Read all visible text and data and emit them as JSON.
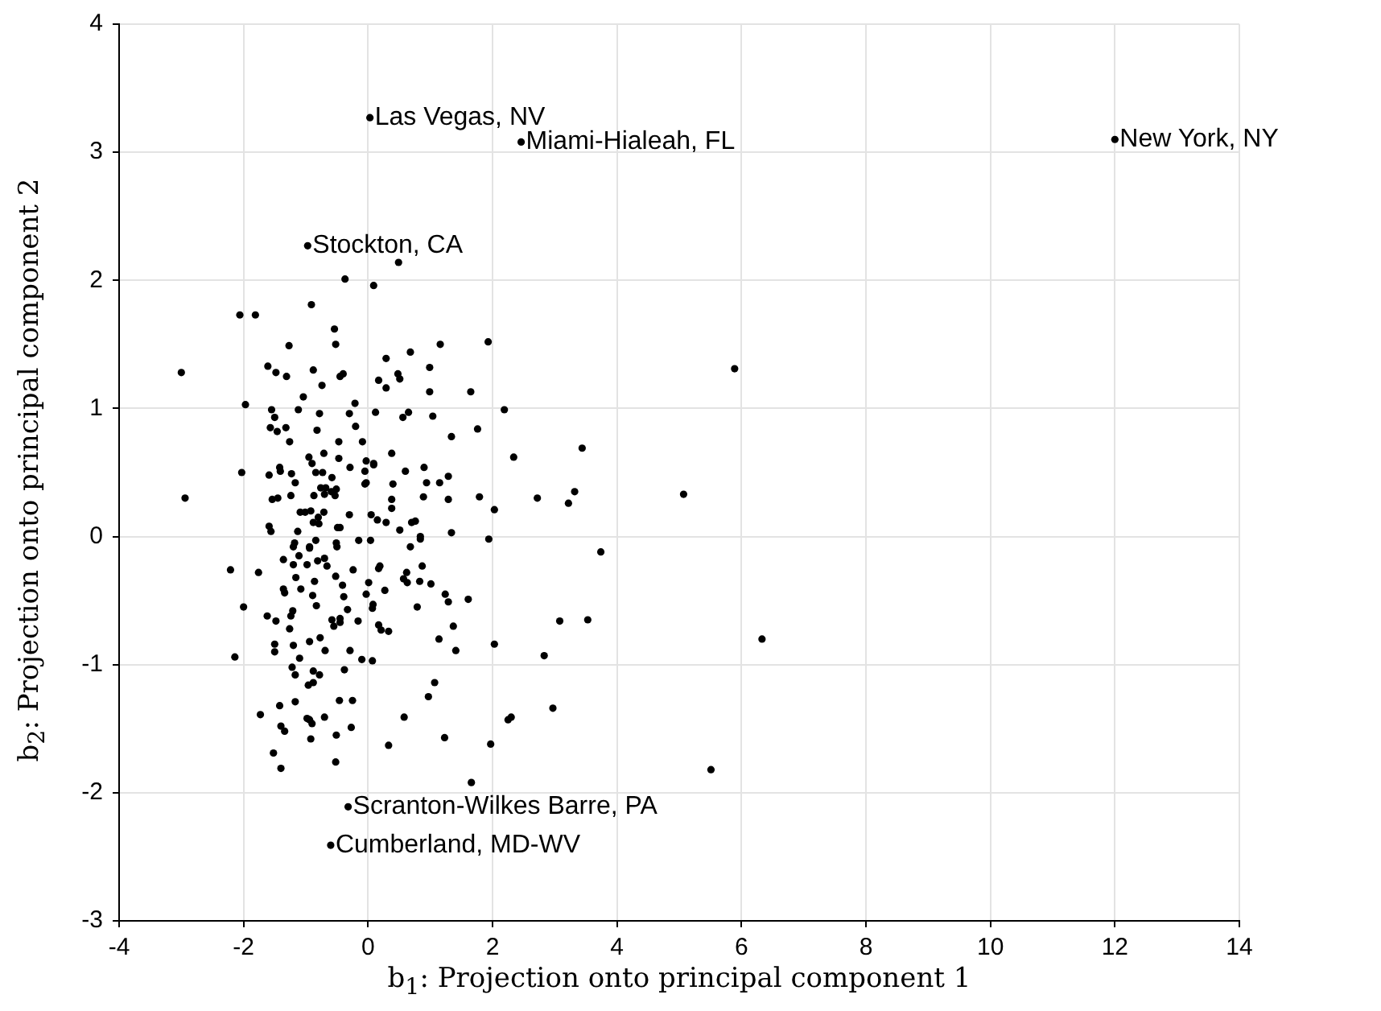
{
  "chart_data": {
    "type": "scatter",
    "xlabel": "b$_{1}$: Projection onto principal component 1",
    "ylabel": "b$_{2}$: Projection onto principal component 2",
    "xlim": [
      -4,
      14
    ],
    "xticks": [
      -4,
      -2,
      0,
      2,
      4,
      6,
      8,
      10,
      12,
      14
    ],
    "ylim": [
      -3,
      4
    ],
    "yticks": [
      -3,
      -2,
      -1,
      0,
      1,
      2,
      3,
      4
    ],
    "grid": true,
    "marker": "circle",
    "legend": false,
    "series": [
      {
        "color": "#000000",
        "x": [
          0.03,
          2.46,
          12.0,
          -0.97,
          -0.32,
          -0.6,
          -0.37,
          0.09,
          0.49,
          -0.91,
          -2.06,
          -1.81,
          -0.54,
          -0.52,
          -1.27,
          -3.0,
          -1.61,
          -1.48,
          -1.31,
          -0.88,
          -0.74,
          -0.45,
          -0.4,
          0.29,
          0.17,
          0.29,
          0.48,
          0.51,
          0.68,
          0.99,
          0.99,
          -1.97,
          -1.04,
          -1.55,
          -1.5,
          -1.12,
          -0.78,
          -0.21,
          -0.3,
          0.12,
          0.56,
          0.65,
          1.04,
          -1.57,
          -1.46,
          -1.32,
          -0.82,
          -0.2,
          -1.26,
          -0.47,
          -0.09,
          -0.95,
          -0.9,
          -0.71,
          -0.47,
          -0.03,
          0.09,
          0.09,
          0.38,
          -2.03,
          -1.59,
          -1.42,
          -1.41,
          -1.23,
          -1.17,
          -0.84,
          -0.73,
          -0.58,
          -0.29,
          -0.05,
          -0.03,
          -0.05,
          0.4,
          0.6,
          0.9,
          0.94,
          -2.94,
          -1.54,
          -1.45,
          -1.24,
          -0.87,
          -0.76,
          -0.7,
          -0.68,
          -0.59,
          -0.53,
          -0.51,
          0.38,
          0.38,
          0.89,
          -1.09,
          -1.01,
          -0.92,
          -0.8,
          -0.71,
          -0.88,
          -0.79,
          -0.3,
          0.05,
          0.15,
          0.29,
          0.51,
          0.7,
          0.76,
          -1.59,
          -1.56,
          -1.13,
          -0.49,
          -0.45,
          0.84,
          1.93,
          1.16,
          1.65,
          2.19,
          1.76,
          1.34,
          2.34,
          3.44,
          1.15,
          1.29,
          1.29,
          1.79,
          2.72,
          3.22,
          3.32,
          2.03,
          1.34,
          1.94,
          5.89,
          5.07,
          6.33,
          5.51,
          -1.18,
          -1.2,
          -0.84,
          -0.94,
          -0.51,
          -0.5,
          -0.15,
          0.04,
          -2.21,
          -1.76,
          -1.36,
          -1.2,
          -0.98,
          -1.11,
          -0.94,
          -0.81,
          -0.7,
          -0.66,
          -1.16,
          -0.24,
          -0.52,
          -0.41,
          -0.86,
          -1.36,
          -1.34,
          -1.08,
          -0.89,
          -0.39,
          0.01,
          -0.03,
          0.17,
          0.19,
          0.27,
          -2.0,
          -0.83,
          0.08,
          0.07,
          -0.33,
          -1.21,
          -1.24,
          -1.62,
          -1.48,
          -1.26,
          -0.58,
          -0.45,
          -0.45,
          -0.55,
          -0.16,
          0.17,
          0.21,
          0.33,
          0.79,
          -1.5,
          -1.5,
          -1.2,
          -0.94,
          -0.77,
          -0.69,
          -1.1,
          -0.29,
          -0.1,
          0.07,
          -2.14,
          -1.22,
          -1.17,
          -0.88,
          -0.78,
          -0.96,
          -0.88,
          -0.38,
          -0.46,
          -0.25,
          -1.17,
          -1.42,
          -1.73,
          -0.98,
          -0.9,
          -0.94,
          -0.7,
          -1.4,
          -1.34,
          -0.92,
          -0.51,
          -0.27,
          -1.52,
          -1.4,
          -0.52,
          0.33,
          0.58,
          1.07,
          0.97,
          0.84,
          0.68,
          3.74,
          0.62,
          0.57,
          0.63,
          0.83,
          0.87,
          1.01,
          1.24,
          1.29,
          1.61,
          1.37,
          1.14,
          1.41,
          2.03,
          3.08,
          3.53,
          2.83,
          2.97,
          2.25,
          2.3,
          1.23,
          1.97,
          1.66
        ],
        "values": [
          3.27,
          3.08,
          3.1,
          2.27,
          -2.11,
          -2.41,
          2.01,
          1.96,
          2.14,
          1.81,
          1.73,
          1.73,
          1.62,
          1.5,
          1.49,
          1.28,
          1.33,
          1.28,
          1.25,
          1.3,
          1.18,
          1.25,
          1.27,
          1.39,
          1.22,
          1.16,
          1.27,
          1.23,
          1.44,
          1.32,
          1.13,
          1.03,
          1.09,
          0.99,
          0.93,
          0.99,
          0.96,
          1.04,
          0.96,
          0.97,
          0.93,
          0.97,
          0.94,
          0.85,
          0.82,
          0.85,
          0.83,
          0.86,
          0.74,
          0.74,
          0.74,
          0.62,
          0.57,
          0.65,
          0.61,
          0.59,
          0.57,
          0.56,
          0.65,
          0.5,
          0.48,
          0.54,
          0.51,
          0.49,
          0.42,
          0.5,
          0.5,
          0.46,
          0.54,
          0.51,
          0.42,
          0.41,
          0.41,
          0.51,
          0.54,
          0.42,
          0.3,
          0.29,
          0.3,
          0.32,
          0.32,
          0.38,
          0.33,
          0.38,
          0.35,
          0.32,
          0.37,
          0.29,
          0.22,
          0.31,
          0.19,
          0.19,
          0.2,
          0.15,
          0.19,
          0.11,
          0.1,
          0.17,
          0.17,
          0.13,
          0.11,
          0.05,
          0.11,
          0.12,
          0.08,
          0.04,
          0.04,
          0.07,
          0.07,
          0.0,
          1.52,
          1.5,
          1.13,
          0.99,
          0.84,
          0.78,
          0.62,
          0.69,
          0.42,
          0.47,
          0.29,
          0.31,
          0.3,
          0.26,
          0.35,
          0.21,
          0.03,
          -0.02,
          1.31,
          0.33,
          -0.8,
          -1.82,
          -0.05,
          -0.08,
          -0.03,
          -0.08,
          -0.05,
          -0.08,
          -0.03,
          -0.03,
          -0.26,
          -0.28,
          -0.18,
          -0.22,
          -0.22,
          -0.15,
          -0.09,
          -0.19,
          -0.17,
          -0.23,
          -0.32,
          -0.26,
          -0.31,
          -0.38,
          -0.35,
          -0.41,
          -0.44,
          -0.41,
          -0.46,
          -0.47,
          -0.36,
          -0.45,
          -0.25,
          -0.23,
          -0.42,
          -0.55,
          -0.54,
          -0.53,
          -0.56,
          -0.57,
          -0.58,
          -0.62,
          -0.62,
          -0.66,
          -0.72,
          -0.65,
          -0.64,
          -0.67,
          -0.7,
          -0.66,
          -0.69,
          -0.73,
          -0.74,
          -0.55,
          -0.84,
          -0.9,
          -0.85,
          -0.82,
          -0.79,
          -0.89,
          -0.95,
          -0.89,
          -0.96,
          -0.97,
          -0.94,
          -1.02,
          -1.08,
          -1.05,
          -1.08,
          -1.16,
          -1.14,
          -1.04,
          -1.28,
          -1.28,
          -1.29,
          -1.32,
          -1.39,
          -1.42,
          -1.46,
          -1.43,
          -1.41,
          -1.48,
          -1.52,
          -1.58,
          -1.55,
          -1.49,
          -1.69,
          -1.81,
          -1.76,
          -1.63,
          -1.41,
          -1.14,
          -1.25,
          -0.02,
          -0.08,
          -0.12,
          -0.28,
          -0.33,
          -0.36,
          -0.35,
          -0.23,
          -0.37,
          -0.45,
          -0.51,
          -0.49,
          -0.7,
          -0.8,
          -0.89,
          -0.84,
          -0.66,
          -0.65,
          -0.93,
          -1.34,
          -1.43,
          -1.41,
          -1.57,
          -1.62,
          -1.92
        ]
      }
    ],
    "annotations": [
      {
        "text": "Las Vegas, NV",
        "x": 0.03,
        "y": 3.27
      },
      {
        "text": "Miami-Hialeah, FL",
        "x": 2.46,
        "y": 3.08
      },
      {
        "text": "New York, NY",
        "x": 12.0,
        "y": 3.1
      },
      {
        "text": "Stockton, CA",
        "x": -0.97,
        "y": 2.27
      },
      {
        "text": "Scranton-Wilkes Barre, PA",
        "x": -0.32,
        "y": -2.11
      },
      {
        "text": "Cumberland, MD-WV",
        "x": -0.6,
        "y": -2.41
      }
    ]
  }
}
